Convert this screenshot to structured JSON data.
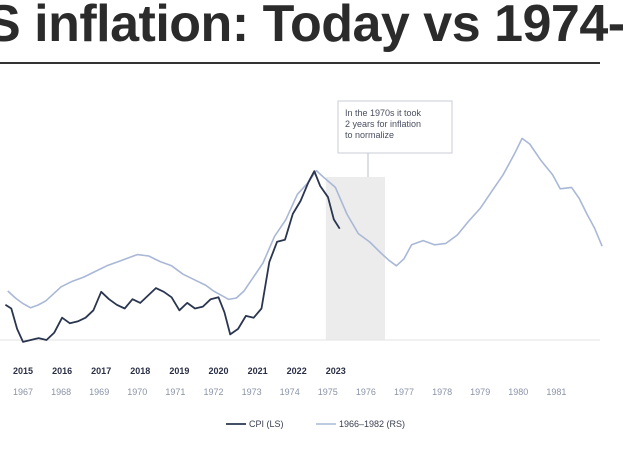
{
  "title": "S inflation: Today vs 1974-",
  "chart_data": {
    "type": "line",
    "title": "S inflation: Today vs 1974-",
    "grid": false,
    "legend_position": "bottom-center",
    "top_axis_labels": [
      "2015",
      "2016",
      "2017",
      "2018",
      "2019",
      "2020",
      "2021",
      "2022",
      "2023"
    ],
    "bottom_axis_labels": [
      "1967",
      "1968",
      "1969",
      "1970",
      "1971",
      "1972",
      "1973",
      "1974",
      "1975",
      "1976",
      "1977",
      "1978",
      "1979",
      "1980",
      "1981"
    ],
    "annotation": {
      "lines": [
        "In the 1970s it took",
        "2 years for inflation",
        "to normalize"
      ],
      "shaded_range": [
        1975.0,
        1976.5
      ]
    },
    "colors": {
      "cpi": "#2a3550",
      "seventies": "#a9b8d6",
      "shade": "#ececec"
    },
    "series": [
      {
        "name": "CPI (LS)",
        "x_axis": "top",
        "x": [
          2014.55,
          2014.7,
          2014.85,
          2015.0,
          2015.2,
          2015.4,
          2015.6,
          2015.8,
          2016.0,
          2016.2,
          2016.4,
          2016.6,
          2016.8,
          2017.0,
          2017.2,
          2017.4,
          2017.6,
          2017.8,
          2018.0,
          2018.2,
          2018.4,
          2018.6,
          2018.8,
          2019.0,
          2019.2,
          2019.4,
          2019.6,
          2019.8,
          2020.0,
          2020.15,
          2020.3,
          2020.5,
          2020.7,
          2020.9,
          2021.1,
          2021.3,
          2021.5,
          2021.7,
          2021.9,
          2022.1,
          2022.3,
          2022.45,
          2022.6,
          2022.8,
          2022.95,
          2023.1
        ],
        "values": [
          1.9,
          1.7,
          0.6,
          -0.1,
          0.0,
          0.1,
          0.0,
          0.4,
          1.2,
          0.9,
          1.0,
          1.2,
          1.6,
          2.6,
          2.2,
          1.9,
          1.7,
          2.2,
          2.0,
          2.4,
          2.8,
          2.6,
          2.3,
          1.6,
          2.0,
          1.7,
          1.8,
          2.2,
          2.3,
          1.5,
          0.3,
          0.6,
          1.3,
          1.2,
          1.7,
          4.2,
          5.3,
          5.4,
          6.8,
          7.5,
          8.5,
          9.1,
          8.3,
          7.7,
          6.5,
          6.0
        ]
      },
      {
        "name": "1966–1982 (RS)",
        "x_axis": "bottom",
        "x": [
          1966.6,
          1966.8,
          1967.0,
          1967.2,
          1967.4,
          1967.6,
          1967.8,
          1968.0,
          1968.3,
          1968.6,
          1968.9,
          1969.2,
          1969.5,
          1969.8,
          1970.0,
          1970.3,
          1970.6,
          1970.9,
          1971.2,
          1971.5,
          1971.8,
          1972.0,
          1972.2,
          1972.4,
          1972.6,
          1972.8,
          1973.0,
          1973.3,
          1973.6,
          1973.9,
          1974.2,
          1974.5,
          1974.7,
          1974.9,
          1975.2,
          1975.5,
          1975.8,
          1976.1,
          1976.4,
          1976.6,
          1976.8,
          1977.0,
          1977.2,
          1977.5,
          1977.8,
          1978.1,
          1978.4,
          1978.7,
          1979.0,
          1979.3,
          1979.6,
          1979.9,
          1980.1,
          1980.3,
          1980.6,
          1980.9,
          1981.1,
          1981.4,
          1981.6,
          1981.8,
          1982.0,
          1982.2
        ],
        "values": [
          3.5,
          3.0,
          2.6,
          2.3,
          2.5,
          2.8,
          3.3,
          3.8,
          4.2,
          4.5,
          4.9,
          5.3,
          5.6,
          5.9,
          6.1,
          6.0,
          5.6,
          5.3,
          4.7,
          4.3,
          3.9,
          3.5,
          3.2,
          2.9,
          3.0,
          3.5,
          4.3,
          5.5,
          7.4,
          8.6,
          10.4,
          11.3,
          12.1,
          11.6,
          10.9,
          9.0,
          7.6,
          7.0,
          6.2,
          5.7,
          5.3,
          5.8,
          6.8,
          7.1,
          6.8,
          6.9,
          7.5,
          8.5,
          9.4,
          10.6,
          11.8,
          13.3,
          14.4,
          14.0,
          12.8,
          11.8,
          10.8,
          10.9,
          10.1,
          9.0,
          8.0,
          6.7
        ]
      }
    ]
  }
}
